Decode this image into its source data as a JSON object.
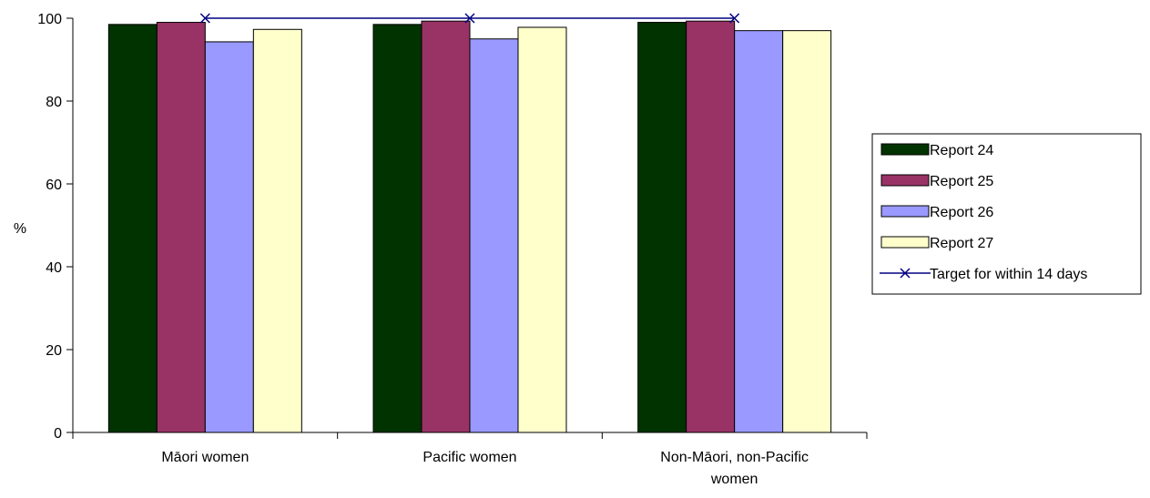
{
  "chart_data": {
    "type": "bar",
    "title": "",
    "xlabel": "",
    "ylabel": "%",
    "ylim": [
      0,
      100
    ],
    "yticks": [
      0,
      20,
      40,
      60,
      80,
      100
    ],
    "grid": false,
    "legend_position": "right",
    "categories": [
      [
        "Māori women"
      ],
      [
        "Pacific women"
      ],
      [
        "Non-Māori, non-Pacific",
        "women"
      ]
    ],
    "series": [
      {
        "name": "Report 24",
        "color": "#003300",
        "values": [
          98.5,
          98.5,
          99
        ]
      },
      {
        "name": "Report 25",
        "color": "#993366",
        "values": [
          99,
          99.3,
          99.3
        ]
      },
      {
        "name": "Report 26",
        "color": "#9999ff",
        "values": [
          94.3,
          95,
          97
        ]
      },
      {
        "name": "Report 27",
        "color": "#ffffcc",
        "values": [
          97.3,
          97.8,
          97
        ]
      }
    ],
    "target_line": {
      "name": "Target for within 14 days",
      "color": "#000080",
      "values": [
        100,
        100,
        100
      ]
    }
  }
}
